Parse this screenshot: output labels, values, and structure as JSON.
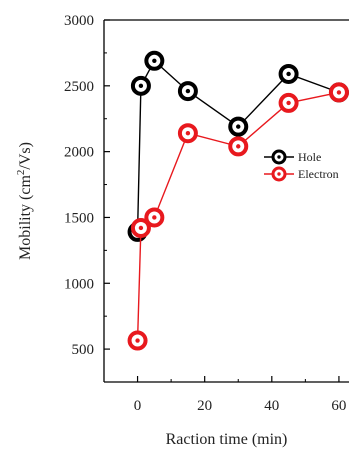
{
  "chart_data": {
    "type": "line",
    "xlabel": "Raction time (min)",
    "ylabel": "Mobility (cm²/Vs)",
    "ylabel_parts": {
      "prefix": "Mobility (cm",
      "superscript": "2",
      "suffix": "/Vs)"
    },
    "xlim": [
      -10,
      63
    ],
    "ylim": [
      250,
      3000
    ],
    "xticks": [
      0,
      20,
      40,
      60
    ],
    "yticks": [
      500,
      1000,
      1500,
      2000,
      2500,
      3000
    ],
    "xtick_labels": [
      "0",
      "20",
      "40",
      "60"
    ],
    "ytick_labels": [
      "500",
      "1000",
      "1500",
      "2000",
      "2500",
      "3000"
    ],
    "grid": false,
    "legend_position": "right",
    "series": [
      {
        "name": "Hole",
        "color": "#000000",
        "marker": "circle-open",
        "x": [
          0,
          1,
          5,
          15,
          30,
          45,
          60
        ],
        "y": [
          1390,
          2500,
          2690,
          2460,
          2190,
          2590,
          2450
        ]
      },
      {
        "name": "Electron",
        "color": "#e8191e",
        "marker": "circle-open",
        "x": [
          0,
          1,
          5,
          15,
          30,
          45,
          60
        ],
        "y": [
          565,
          1420,
          1500,
          2140,
          2040,
          2370,
          2450
        ]
      }
    ]
  }
}
